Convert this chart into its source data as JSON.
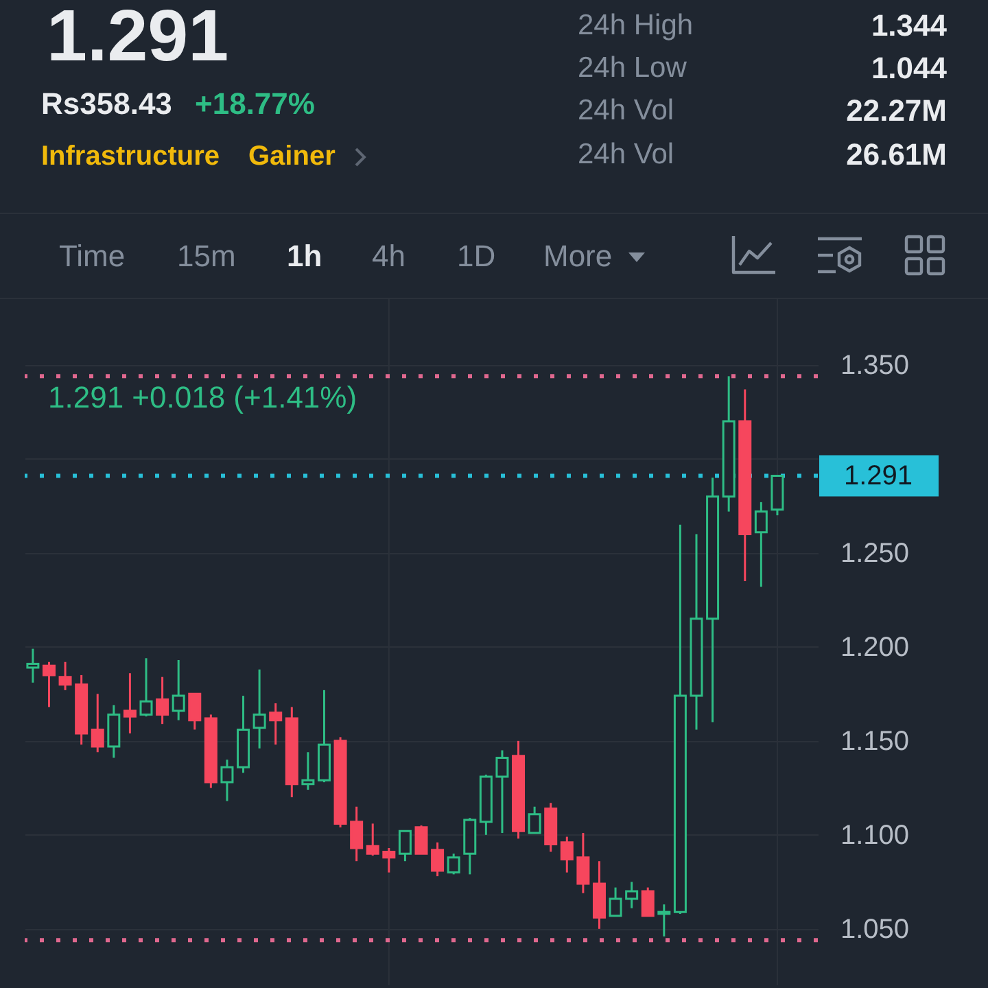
{
  "chart_data": [
    {
      "type": "other",
      "title": "1.291",
      "annotations": [
        "Rs358.43",
        "+18.77%",
        "Infrastructure",
        "Gainer",
        "24h High",
        "1.344",
        "24h Low",
        "1.044",
        "24h Vol",
        "22.27M",
        "24h Vol",
        "26.61M"
      ]
    },
    {
      "type": "other",
      "annotations": [
        "Time",
        "15m",
        "1h",
        "4h",
        "1D",
        "More"
      ]
    },
    {
      "type": "candlestick",
      "title": "1.291 +0.018 (+1.41%)",
      "categories": [
        null,
        null,
        null,
        null,
        null,
        null,
        null,
        null,
        null,
        null,
        null,
        null,
        null,
        null,
        null,
        null,
        null,
        null,
        null,
        null,
        null,
        null,
        null,
        null,
        null,
        null,
        null,
        null,
        null,
        null,
        null,
        null,
        null,
        null,
        null,
        null,
        null,
        null,
        null,
        null,
        null,
        null,
        null,
        null,
        null,
        null,
        null
      ],
      "ohlc": [
        [
          1.189,
          1.199,
          1.181,
          1.191
        ],
        [
          1.19,
          1.192,
          1.168,
          1.185
        ],
        [
          1.184,
          1.192,
          1.177,
          1.18
        ],
        [
          1.18,
          1.185,
          1.148,
          1.154
        ],
        [
          1.156,
          1.175,
          1.144,
          1.147
        ],
        [
          1.147,
          1.169,
          1.141,
          1.164
        ],
        [
          1.166,
          1.186,
          1.154,
          1.163
        ],
        [
          1.164,
          1.194,
          1.163,
          1.171
        ],
        [
          1.172,
          1.184,
          1.159,
          1.164
        ],
        [
          1.166,
          1.193,
          1.161,
          1.174
        ],
        [
          1.175,
          1.175,
          1.156,
          1.161
        ],
        [
          1.162,
          1.164,
          1.125,
          1.128
        ],
        [
          1.128,
          1.14,
          1.118,
          1.136
        ],
        [
          1.136,
          1.174,
          1.133,
          1.156
        ],
        [
          1.157,
          1.188,
          1.146,
          1.164
        ],
        [
          1.165,
          1.17,
          1.148,
          1.161
        ],
        [
          1.162,
          1.168,
          1.12,
          1.127
        ],
        [
          1.127,
          1.144,
          1.124,
          1.129
        ],
        [
          1.129,
          1.177,
          1.128,
          1.148
        ],
        [
          1.15,
          1.152,
          1.104,
          1.106
        ],
        [
          1.107,
          1.115,
          1.086,
          1.093
        ],
        [
          1.094,
          1.106,
          1.089,
          1.09
        ],
        [
          1.091,
          1.093,
          1.08,
          1.088
        ],
        [
          1.09,
          1.102,
          1.086,
          1.102
        ],
        [
          1.104,
          1.105,
          1.09,
          1.09
        ],
        [
          1.092,
          1.096,
          1.078,
          1.081
        ],
        [
          1.08,
          1.09,
          1.079,
          1.088
        ],
        [
          1.09,
          1.109,
          1.079,
          1.108
        ],
        [
          1.107,
          1.132,
          1.1,
          1.131
        ],
        [
          1.131,
          1.145,
          1.101,
          1.141
        ],
        [
          1.142,
          1.15,
          1.098,
          1.102
        ],
        [
          1.101,
          1.115,
          1.101,
          1.111
        ],
        [
          1.114,
          1.117,
          1.091,
          1.095
        ],
        [
          1.096,
          1.099,
          1.08,
          1.087
        ],
        [
          1.088,
          1.101,
          1.069,
          1.074
        ],
        [
          1.074,
          1.086,
          1.05,
          1.056
        ],
        [
          1.057,
          1.072,
          1.057,
          1.066
        ],
        [
          1.066,
          1.075,
          1.061,
          1.07
        ],
        [
          1.07,
          1.072,
          1.057,
          1.057
        ],
        [
          1.058,
          1.063,
          1.046,
          1.059
        ],
        [
          1.059,
          1.265,
          1.058,
          1.174
        ],
        [
          1.174,
          1.26,
          1.156,
          1.215
        ],
        [
          1.215,
          1.29,
          1.16,
          1.28
        ],
        [
          1.28,
          1.344,
          1.272,
          1.32
        ],
        [
          1.32,
          1.337,
          1.235,
          1.26
        ],
        [
          1.261,
          1.277,
          1.232,
          1.272
        ],
        [
          1.273,
          1.291,
          1.27,
          1.291
        ]
      ],
      "colors": [
        "#2ebd85",
        "#f6465d",
        "#f6465d",
        "#f6465d",
        "#f6465d",
        "#2ebd85",
        "#f6465d",
        "#2ebd85",
        "#f6465d",
        "#2ebd85",
        "#f6465d",
        "#f6465d",
        "#2ebd85",
        "#2ebd85",
        "#2ebd85",
        "#f6465d",
        "#f6465d",
        "#2ebd85",
        "#2ebd85",
        "#f6465d",
        "#f6465d",
        "#f6465d",
        "#f6465d",
        "#2ebd85",
        "#f6465d",
        "#f6465d",
        "#2ebd85",
        "#2ebd85",
        "#2ebd85",
        "#2ebd85",
        "#f6465d",
        "#2ebd85",
        "#f6465d",
        "#f6465d",
        "#f6465d",
        "#f6465d",
        "#2ebd85",
        "#2ebd85",
        "#f6465d",
        "#2ebd85",
        "#2ebd85",
        "#2ebd85",
        "#2ebd85",
        "#2ebd85",
        "#f6465d",
        "#2ebd85",
        "#2ebd85"
      ],
      "ylim": [
        1.02,
        1.385
      ],
      "yticks": [
        {
          "value": 1.05,
          "label": "1.050"
        },
        {
          "value": 1.1,
          "label": "1.100"
        },
        {
          "value": 1.15,
          "label": "1.150"
        },
        {
          "value": 1.2,
          "label": "1.200"
        },
        {
          "value": 1.25,
          "label": "1.250"
        },
        {
          "value": 1.3,
          "label": null
        },
        {
          "value": 1.35,
          "label": "1.350"
        }
      ],
      "grid": "y",
      "ref_lines": [
        {
          "axis": "y",
          "value": 1.344,
          "color": "#e0688f",
          "line_style": "dotted"
        },
        {
          "axis": "y",
          "value": 1.291,
          "label": "1.291",
          "color": "#28c0d8",
          "line_style": "dotted"
        },
        {
          "axis": "y",
          "value": 1.044,
          "color": "#e0688f",
          "line_style": "dotted"
        }
      ]
    }
  ]
}
